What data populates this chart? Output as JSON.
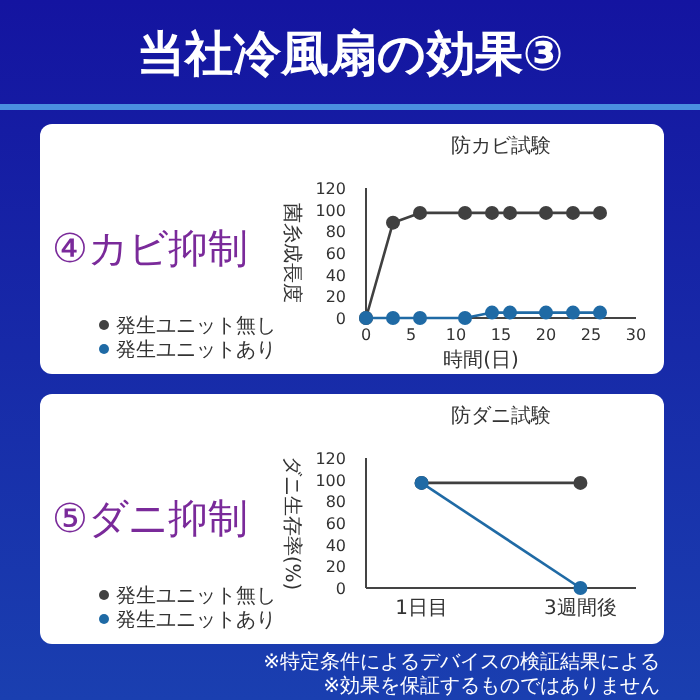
{
  "chart_data": [
    {
      "type": "line",
      "title": "防カビ試験",
      "subtitle": "④カビ抑制",
      "xlabel": "時間(日)",
      "ylabel": "菌糸成長度",
      "annotations": [
        "当社冷風扇の効果③"
      ],
      "x": [
        0,
        3,
        6,
        11,
        14,
        16,
        20,
        23,
        26
      ],
      "xlim": [
        0,
        30
      ],
      "xticks": [
        0,
        5,
        10,
        15,
        20,
        25,
        30
      ],
      "ylim": [
        0,
        120
      ],
      "yticks": [
        0,
        20,
        40,
        60,
        80,
        100,
        120
      ],
      "marker": "circle",
      "legend": "bottom left",
      "series": [
        {
          "name": "発生ユニット無し",
          "color": "#404040",
          "values": [
            0,
            88,
            97,
            97,
            97,
            97,
            97,
            97,
            97
          ]
        },
        {
          "name": "発生ユニットあり",
          "color": "#1f6aa5",
          "values": [
            0,
            0,
            0,
            0,
            5,
            5,
            5,
            5,
            5
          ]
        }
      ]
    },
    {
      "type": "line",
      "title": "防ダニ試験",
      "subtitle": "⑤ダニ抑制",
      "ylabel": "ダニ生存率(%)",
      "annotations": [
        "※特定条件によるデバイスの検証結果による",
        "※効果を保証するものではありません"
      ],
      "categories": [
        "1日目",
        "3週間後"
      ],
      "ylim": [
        0,
        120
      ],
      "yticks": [
        0,
        20,
        40,
        60,
        80,
        100,
        120
      ],
      "marker": "circle",
      "legend": "bottom left",
      "series": [
        {
          "name": "発生ユニット無し",
          "color": "#404040",
          "values": [
            97,
            97
          ]
        },
        {
          "name": "発生ユニットあり",
          "color": "#1f6aa5",
          "values": [
            97,
            0
          ]
        }
      ]
    }
  ]
}
